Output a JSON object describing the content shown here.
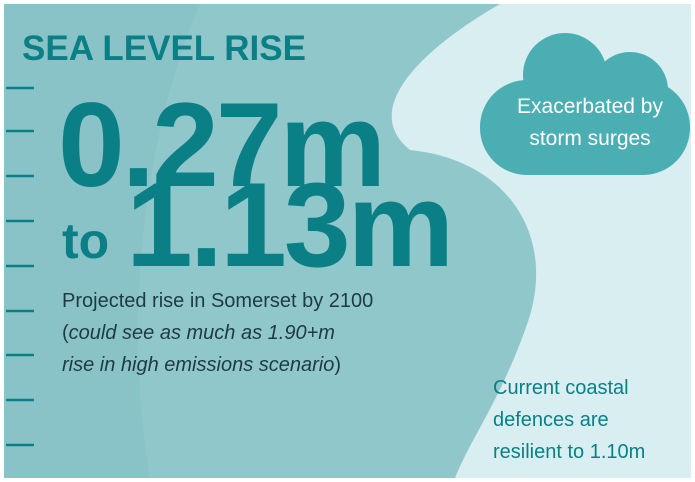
{
  "title": "SEA LEVEL RISE",
  "headline": {
    "low": "0.27m",
    "joiner": "to",
    "high": "1.13m"
  },
  "description": {
    "main": "Projected rise in Somerset by 2100",
    "note_open": "(",
    "note_lines": [
      "could see as much as 1.90+m",
      "rise in high emissions scenario"
    ],
    "note_close": ")"
  },
  "callouts": {
    "cloud": [
      "Exacerbated by",
      "storm surges"
    ],
    "defences": [
      "Current coastal",
      "defences are",
      "resilient to 1.10m"
    ]
  }
}
